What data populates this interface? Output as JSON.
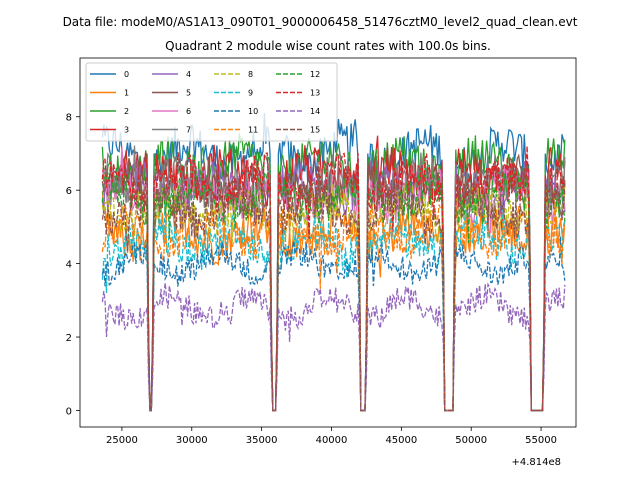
{
  "chart_data": {
    "type": "line",
    "suptitle": "Data file: modeM0/AS1A13_090T01_9000006458_51476cztM0_level2_quad_clean.evt",
    "title": "Quadrant 2 module wise count rates with 100.0s bins.",
    "xlabel": "",
    "ylabel": "",
    "x_offset_label": "+4.814e8",
    "xlim": [
      22000,
      57500
    ],
    "ylim": [
      -0.45,
      9.6
    ],
    "x_ticks": [
      25000,
      30000,
      35000,
      40000,
      45000,
      50000,
      55000
    ],
    "x_tick_labels": [
      "25000",
      "30000",
      "35000",
      "40000",
      "45000",
      "50000",
      "55000"
    ],
    "y_ticks": [
      0,
      2,
      4,
      6,
      8
    ],
    "y_tick_labels": [
      "0",
      "2",
      "4",
      "6",
      "8"
    ],
    "grid": false,
    "legend_position": "top-left",
    "time_range": [
      23600,
      56700
    ],
    "gaps": [
      {
        "start": 26950,
        "end": 27150
      },
      {
        "start": 35750,
        "end": 36050
      },
      {
        "start": 42100,
        "end": 42450
      },
      {
        "start": 48100,
        "end": 48700
      },
      {
        "start": 54300,
        "end": 55150
      }
    ],
    "series": [
      {
        "name": "0",
        "color": "#1f77b4",
        "dashed": false,
        "level": 7.0
      },
      {
        "name": "1",
        "color": "#ff7f0e",
        "dashed": false,
        "level": 4.8
      },
      {
        "name": "2",
        "color": "#2ca02c",
        "dashed": false,
        "level": 6.7
      },
      {
        "name": "3",
        "color": "#d62728",
        "dashed": false,
        "level": 6.4
      },
      {
        "name": "4",
        "color": "#9467bd",
        "dashed": false,
        "level": 6.0
      },
      {
        "name": "5",
        "color": "#8c564b",
        "dashed": false,
        "level": 6.1
      },
      {
        "name": "6",
        "color": "#e377c2",
        "dashed": false,
        "level": 5.9
      },
      {
        "name": "7",
        "color": "#7f7f7f",
        "dashed": false,
        "level": 6.2
      },
      {
        "name": "8",
        "color": "#bcbd22",
        "dashed": true,
        "level": 5.4
      },
      {
        "name": "9",
        "color": "#17becf",
        "dashed": true,
        "level": 4.6
      },
      {
        "name": "10",
        "color": "#1f77b4",
        "dashed": true,
        "level": 4.0
      },
      {
        "name": "11",
        "color": "#ff7f0e",
        "dashed": true,
        "level": 4.9
      },
      {
        "name": "12",
        "color": "#2ca02c",
        "dashed": true,
        "level": 5.8
      },
      {
        "name": "13",
        "color": "#d62728",
        "dashed": true,
        "level": 6.2
      },
      {
        "name": "14",
        "color": "#9467bd",
        "dashed": true,
        "level": 2.8
      },
      {
        "name": "15",
        "color": "#8c564b",
        "dashed": true,
        "level": 5.5
      }
    ]
  }
}
